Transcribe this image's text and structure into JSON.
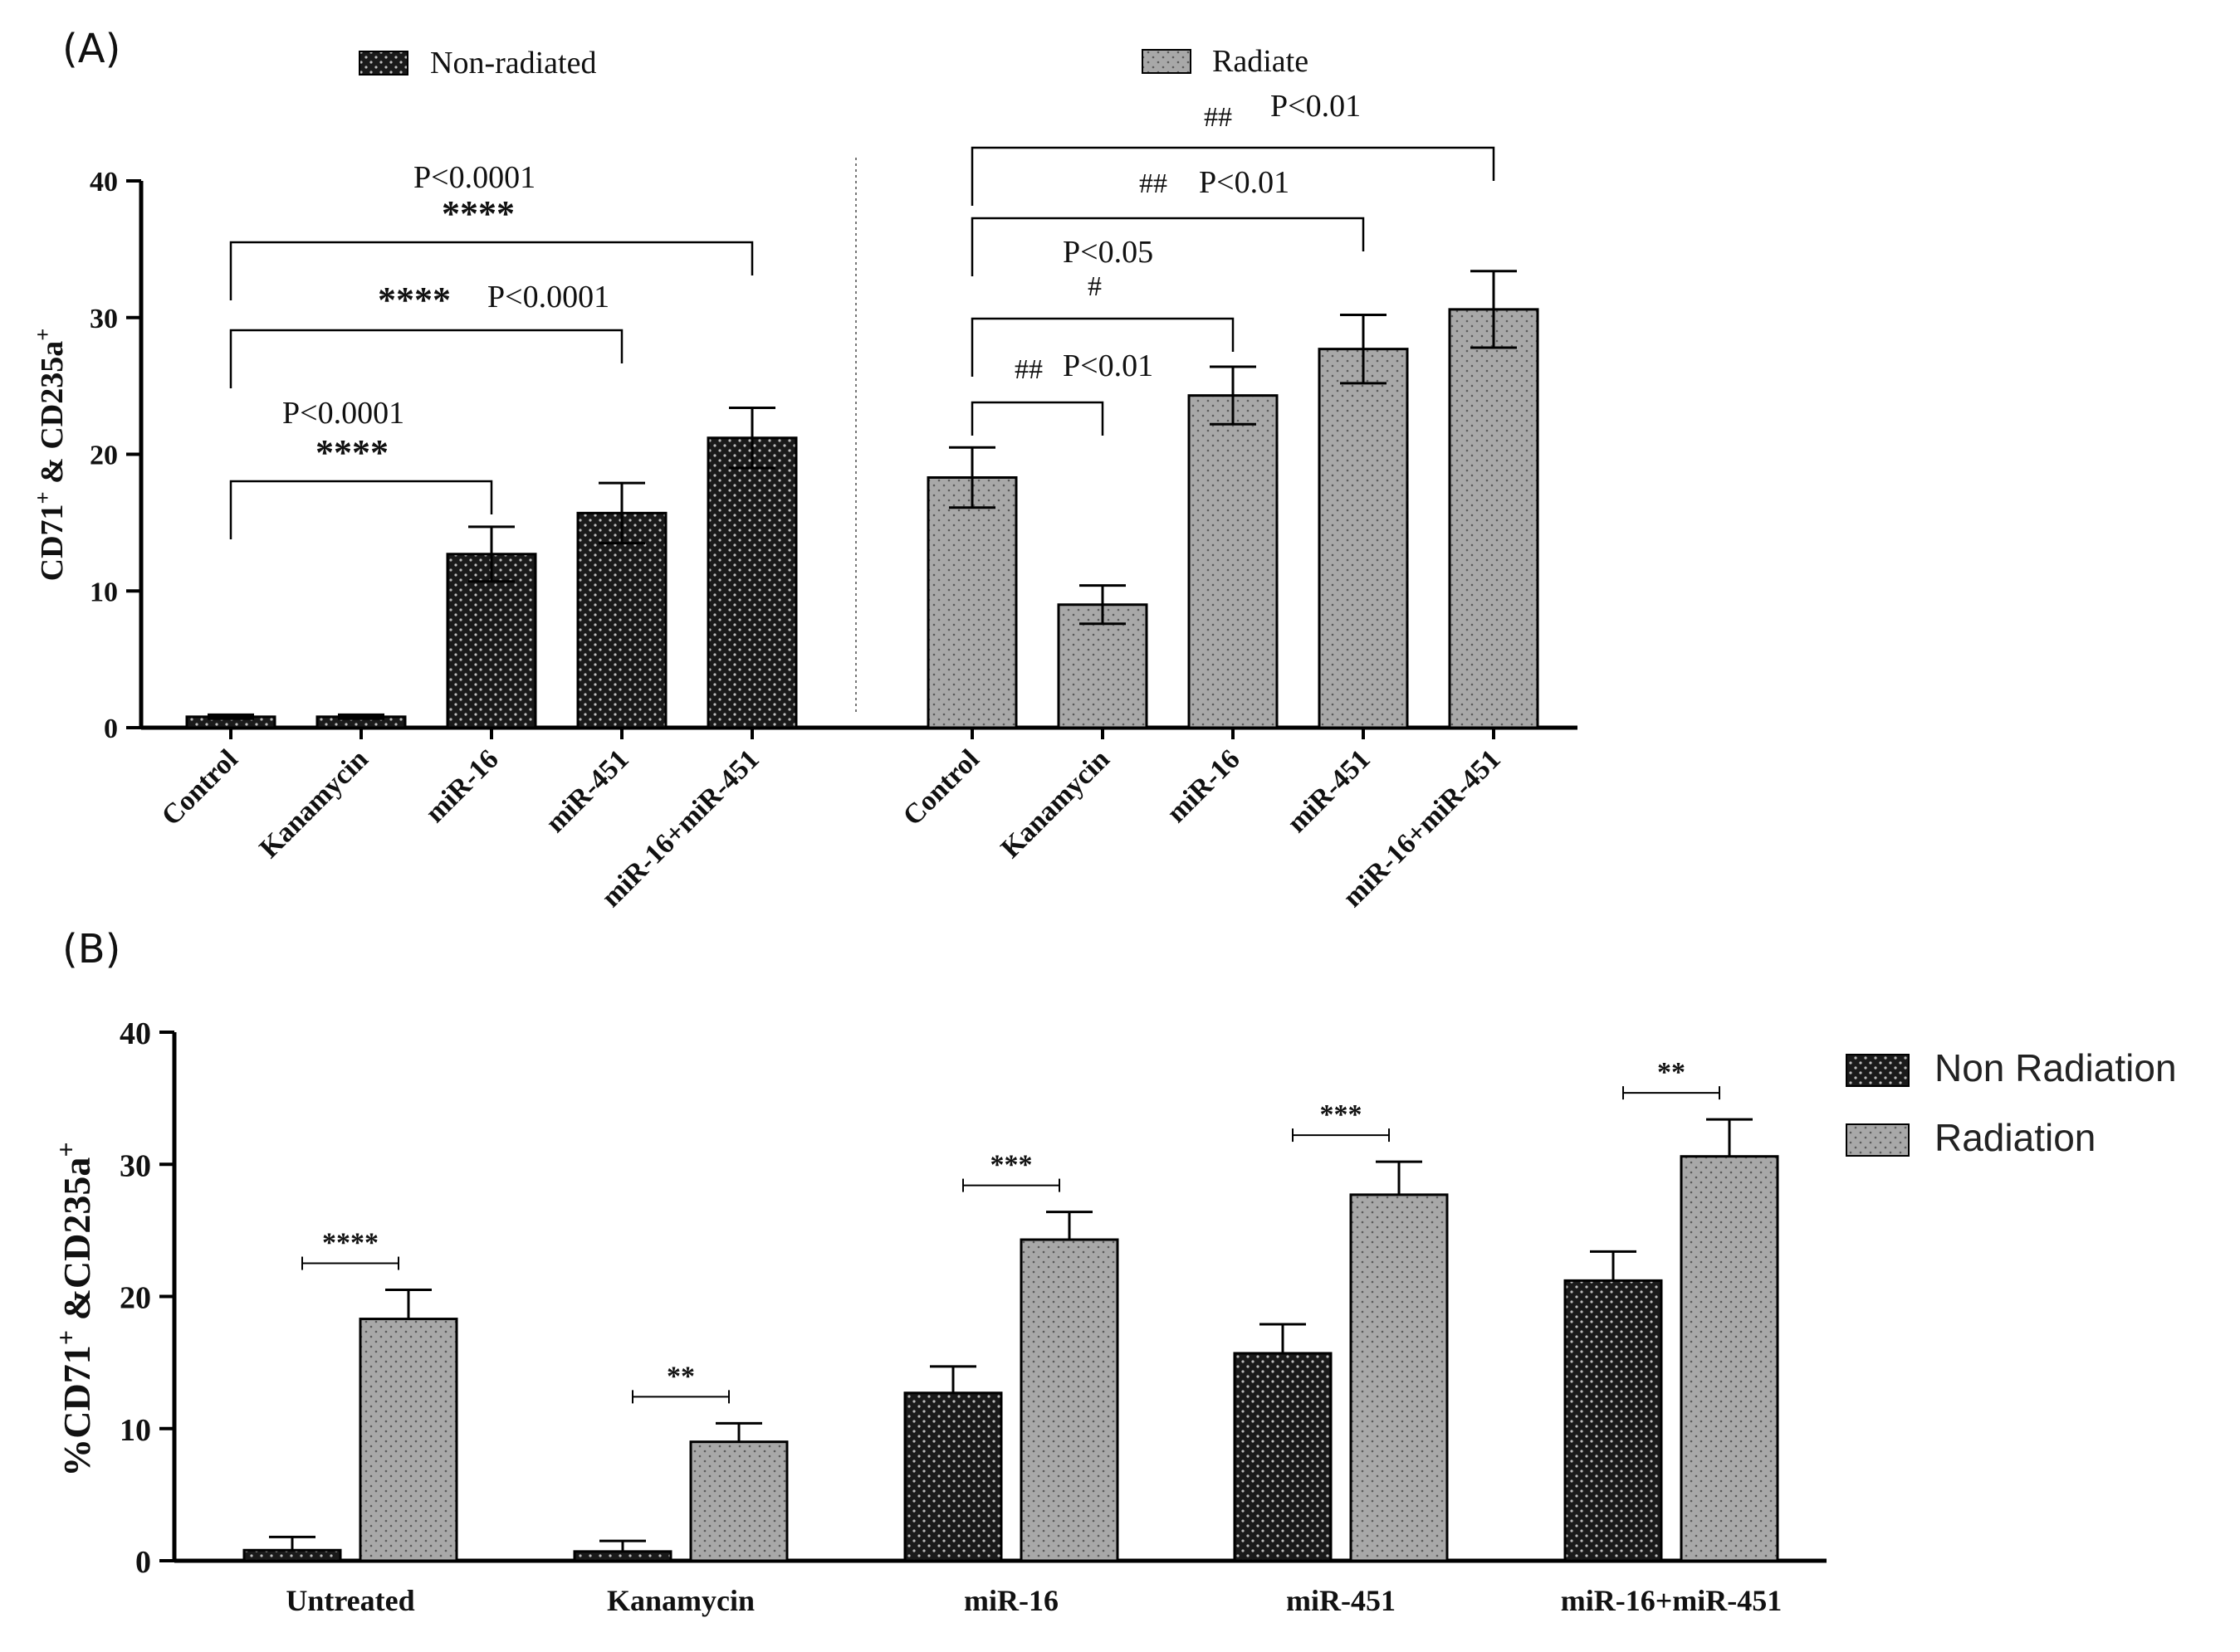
{
  "colors": {
    "non_radiated_fill": "#1a1a1a",
    "radiated_fill": "#a8a8a8",
    "axis": "#000000"
  },
  "chart_data": [
    {
      "panel": "(A)",
      "type": "bar",
      "ylabel": "CD71+ & CD235a+",
      "ylim": [
        0,
        40
      ],
      "yticks": [
        "0",
        "10",
        "20",
        "30",
        "40"
      ],
      "legend": [
        "Non-radiated",
        "Radiate"
      ],
      "groups": [
        {
          "name": "Non-radiated",
          "categories": [
            "Control",
            "Kanamycin",
            "miR-16",
            "miR-451",
            "miR-16+miR-451"
          ],
          "values": [
            0.8,
            0.8,
            12.7,
            15.7,
            21.2
          ],
          "errors": [
            0.15,
            0.15,
            2.0,
            2.2,
            2.2
          ]
        },
        {
          "name": "Radiate",
          "categories": [
            "Control",
            "Kanamycin",
            "miR-16",
            "miR-451",
            "miR-16+miR-451"
          ],
          "values": [
            18.3,
            9.0,
            24.3,
            27.7,
            30.6
          ],
          "errors": [
            2.2,
            1.4,
            2.1,
            2.5,
            2.8
          ]
        }
      ],
      "annotations": [
        {
          "group": 0,
          "from": 0,
          "to": 4,
          "p": "P<0.0001",
          "sig": "****"
        },
        {
          "group": 0,
          "from": 0,
          "to": 3,
          "p": "P<0.0001",
          "sig": "****"
        },
        {
          "group": 0,
          "from": 0,
          "to": 2,
          "p": "P<0.0001",
          "sig": "****"
        },
        {
          "group": 1,
          "from": 0,
          "to": 4,
          "p": "P<0.01",
          "sig": "##"
        },
        {
          "group": 1,
          "from": 0,
          "to": 3,
          "p": "P<0.01",
          "sig": "##"
        },
        {
          "group": 1,
          "from": 0,
          "to": 2,
          "p": "P<0.05",
          "sig": "#"
        },
        {
          "group": 1,
          "from": 0,
          "to": 1,
          "p": "P<0.01",
          "sig": "##"
        }
      ]
    },
    {
      "panel": "(B)",
      "type": "bar",
      "ylabel": "%CD71+ &CD235a+",
      "ylim": [
        0,
        40
      ],
      "yticks": [
        "0",
        "10",
        "20",
        "30",
        "40"
      ],
      "categories": [
        "Untreated",
        "Kanamycin",
        "miR-16",
        "miR-451",
        "miR-16+miR-451"
      ],
      "legend": [
        "Non Radiation",
        "Radiation"
      ],
      "series": [
        {
          "name": "Non Radiation",
          "values": [
            0.8,
            0.7,
            12.7,
            15.7,
            21.2
          ],
          "errors": [
            1.0,
            0.8,
            2.0,
            2.2,
            2.2
          ]
        },
        {
          "name": "Radiation",
          "values": [
            18.3,
            9.0,
            24.3,
            27.7,
            30.6
          ],
          "errors": [
            2.2,
            1.4,
            2.1,
            2.5,
            2.8
          ]
        }
      ],
      "significance": [
        "****",
        "**",
        "***",
        "***",
        "**"
      ]
    }
  ]
}
